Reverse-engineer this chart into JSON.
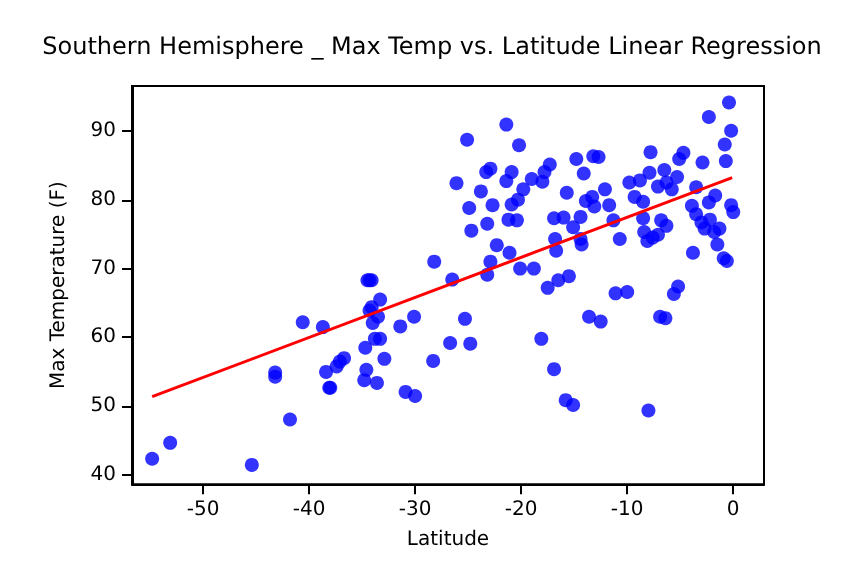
{
  "chart_data": {
    "type": "scatter",
    "title": "Southern Hemisphere _ Max Temp vs. Latitude Linear Regression",
    "xlabel": "Latitude",
    "ylabel": "Max Temperature (F)",
    "xlim": [
      -56.7,
      2.9
    ],
    "ylim": [
      38.7,
      96.5
    ],
    "xticks": [
      -50,
      -40,
      -30,
      -20,
      -10,
      0
    ],
    "yticks": [
      40,
      50,
      60,
      70,
      80,
      90
    ],
    "grid": false,
    "marker": "circle",
    "series": [
      {
        "color": "#0000ff",
        "x": [
          -54.8,
          -53.1,
          -45.4,
          -43.2,
          -43.2,
          -41.8,
          -40.6,
          -38.7,
          -38.4,
          -38.1,
          -38.0,
          -37.4,
          -37.1,
          -36.7,
          -34.8,
          -34.6,
          -34.7,
          -34.5,
          -34.3,
          -34.1,
          -34.3,
          -34.1,
          -34.0,
          -33.8,
          -33.6,
          -33.3,
          -33.3,
          -33.5,
          -32.9,
          -31.4,
          -30.9,
          -30.0,
          -30.1,
          -28.2,
          -28.3,
          -26.7,
          -26.5,
          -25.3,
          -24.8,
          -25.1,
          -26.1,
          -24.7,
          -24.9,
          -23.8,
          -23.3,
          -21.4,
          -20.2,
          -22.9,
          -21.4,
          -20.9,
          -22.7,
          -23.2,
          -22.3,
          -22.9,
          -23.2,
          -21.1,
          -21.2,
          -20.9,
          -20.3,
          -19.8,
          -20.4,
          -20.1,
          -18.8,
          -19.0,
          -17.8,
          -17.3,
          -18.0,
          -16.9,
          -16.8,
          -16.7,
          -16.5,
          -17.5,
          -16.0,
          -15.7,
          -15.1,
          -14.4,
          -14.3,
          -15.5,
          -14.8,
          -14.1,
          -13.2,
          -12.7,
          -13.9,
          -13.3,
          -13.1,
          -14.4,
          -12.1,
          -11.7,
          -11.3,
          -10.7,
          -13.6,
          -12.5,
          -11.1,
          -10.0,
          -18.1,
          -16.9,
          -15.8,
          -15.1,
          -8.0,
          -9.8,
          -9.3,
          -8.8,
          -7.8,
          -7.9,
          -8.5,
          -8.5,
          -8.4,
          -8.1,
          -7.6,
          -7.1,
          -6.8,
          -6.3,
          -7.1,
          -6.5,
          -6.3,
          -5.8,
          -5.3,
          -5.1,
          -4.7,
          -5.6,
          -5.2,
          -6.9,
          -6.4,
          -3.8,
          -3.5,
          -2.9,
          -2.3,
          -1.7,
          -3.9,
          -3.5,
          -3.0,
          -2.7,
          -2.2,
          -1.8,
          -1.5,
          -1.3,
          -0.9,
          -0.6,
          -0.4,
          -0.2,
          -0.8,
          -0.7,
          -0.2,
          0.0,
          -2.3
        ],
        "values": [
          42.4,
          44.7,
          41.5,
          54.9,
          54.3,
          48.1,
          62.2,
          61.5,
          55.0,
          52.7,
          52.7,
          55.8,
          56.5,
          57.0,
          53.8,
          55.3,
          58.5,
          68.3,
          68.3,
          68.3,
          63.9,
          64.4,
          62.1,
          59.8,
          53.4,
          59.8,
          65.5,
          63.0,
          56.9,
          61.6,
          52.1,
          51.5,
          63.0,
          71.0,
          56.6,
          59.2,
          68.4,
          62.7,
          59.1,
          88.7,
          82.4,
          75.5,
          78.8,
          81.2,
          84.0,
          90.9,
          87.9,
          84.5,
          82.7,
          84.0,
          79.2,
          76.5,
          73.4,
          71.0,
          69.1,
          72.3,
          77.1,
          79.3,
          80.0,
          81.5,
          77.0,
          70.0,
          70.0,
          83.0,
          84.0,
          85.1,
          82.6,
          77.3,
          74.3,
          72.6,
          68.3,
          67.2,
          77.4,
          81.0,
          76.0,
          74.3,
          73.5,
          68.9,
          85.9,
          83.8,
          86.3,
          86.2,
          79.8,
          80.4,
          79.0,
          77.5,
          81.5,
          79.2,
          77.0,
          74.3,
          63.0,
          62.3,
          66.4,
          66.6,
          59.8,
          55.4,
          50.9,
          50.2,
          49.4,
          82.5,
          80.4,
          82.8,
          86.9,
          83.9,
          79.7,
          77.3,
          75.3,
          74.0,
          74.5,
          74.9,
          77.0,
          76.2,
          81.9,
          84.3,
          82.5,
          81.5,
          83.3,
          85.9,
          86.8,
          66.3,
          67.4,
          63.0,
          62.8,
          72.3,
          81.8,
          85.4,
          92.0,
          80.6,
          79.1,
          77.9,
          76.7,
          75.8,
          77.1,
          75.3,
          73.5,
          75.8,
          71.5,
          71.1,
          94.1,
          90.0,
          88.0,
          85.6,
          79.2,
          78.2,
          79.6
        ]
      },
      {
        "type": "line",
        "color": "#ff0000",
        "marker": "none",
        "x": [
          -54.8,
          -0.1
        ],
        "values": [
          51.4,
          83.2
        ]
      }
    ]
  }
}
